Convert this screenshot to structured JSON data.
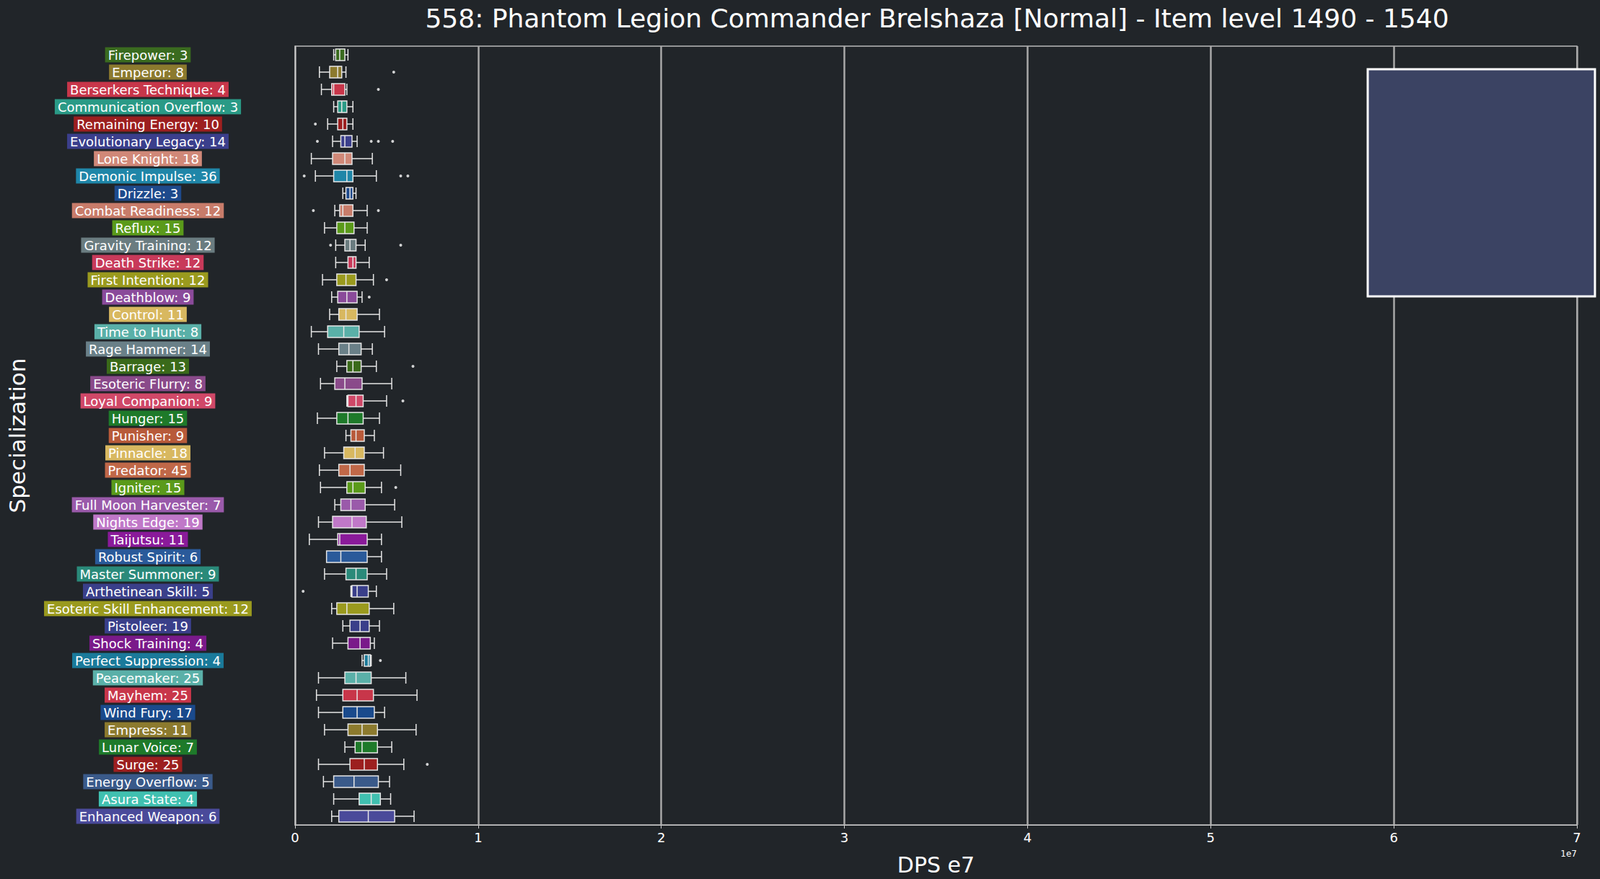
{
  "chart_data": {
    "type": "boxplot",
    "title": "558: Phantom Legion Commander Brelshaza [Normal] - Item level 1490 - 1540",
    "x_label": "DPS e7",
    "y_label": "Specialization",
    "annotations": [
      "1e7"
    ],
    "orientation": "horizontal",
    "grid": true,
    "xlim": [
      0,
      7
    ],
    "xticks": [
      0,
      1,
      2,
      3,
      4,
      5,
      6,
      7
    ],
    "categories": [
      "Firepower: 3",
      "Emperor: 8",
      "Berserkers Technique: 4",
      "Communication Overflow: 3",
      "Remaining Energy: 10",
      "Evolutionary Legacy: 14",
      "Lone Knight: 18",
      "Demonic Impulse: 36",
      "Drizzle: 3",
      "Combat Readiness: 12",
      "Reflux: 15",
      "Gravity Training: 12",
      "Death Strike: 12",
      "First Intention: 12",
      "Deathblow: 9",
      "Control: 11",
      "Time to Hunt: 8",
      "Rage Hammer: 14",
      "Barrage: 13",
      "Esoteric Flurry: 8",
      "Loyal Companion: 9",
      "Hunger: 15",
      "Punisher: 9",
      "Pinnacle: 18",
      "Predator: 45",
      "Igniter: 15",
      "Full Moon Harvester: 7",
      "Nights Edge: 19",
      "Taijutsu: 11",
      "Robust Spirit: 6",
      "Master Summoner: 9",
      "Arthetinean Skill: 5",
      "Esoteric Skill Enhancement: 12",
      "Pistoleer: 19",
      "Shock Training: 4",
      "Perfect Suppression: 4",
      "Peacemaker: 25",
      "Mayhem: 25",
      "Wind Fury: 17",
      "Empress: 11",
      "Lunar Voice: 7",
      "Surge: 25",
      "Energy Overflow: 5",
      "Asura State: 4",
      "Enhanced Weapon: 6"
    ],
    "boxes": [
      [
        0.211,
        0.222,
        0.244,
        0.272,
        0.289
      ],
      [
        0.133,
        0.189,
        0.233,
        0.255,
        0.278
      ],
      [
        0.144,
        0.2,
        0.211,
        0.272,
        0.283
      ],
      [
        0.211,
        0.233,
        0.255,
        0.283,
        0.316
      ],
      [
        0.178,
        0.233,
        0.261,
        0.283,
        0.316
      ],
      [
        0.205,
        0.25,
        0.272,
        0.311,
        0.339
      ],
      [
        0.089,
        0.205,
        0.272,
        0.311,
        0.422
      ],
      [
        0.111,
        0.211,
        0.283,
        0.316,
        0.444
      ],
      [
        0.261,
        0.278,
        0.3,
        0.316,
        0.333
      ],
      [
        0.217,
        0.244,
        0.261,
        0.316,
        0.394
      ],
      [
        0.161,
        0.228,
        0.272,
        0.322,
        0.394
      ],
      [
        0.222,
        0.272,
        0.3,
        0.333,
        0.383
      ],
      [
        0.222,
        0.289,
        0.316,
        0.333,
        0.405
      ],
      [
        0.15,
        0.228,
        0.278,
        0.333,
        0.428
      ],
      [
        0.2,
        0.233,
        0.283,
        0.339,
        0.366
      ],
      [
        0.189,
        0.239,
        0.278,
        0.339,
        0.461
      ],
      [
        0.089,
        0.178,
        0.266,
        0.35,
        0.489
      ],
      [
        0.128,
        0.239,
        0.294,
        0.361,
        0.422
      ],
      [
        0.228,
        0.283,
        0.316,
        0.361,
        0.444
      ],
      [
        0.139,
        0.217,
        0.272,
        0.366,
        0.528
      ],
      [
        0.283,
        0.289,
        0.333,
        0.372,
        0.5
      ],
      [
        0.122,
        0.228,
        0.289,
        0.372,
        0.461
      ],
      [
        0.278,
        0.305,
        0.333,
        0.378,
        0.433
      ],
      [
        0.161,
        0.266,
        0.328,
        0.378,
        0.483
      ],
      [
        0.133,
        0.239,
        0.3,
        0.378,
        0.577
      ],
      [
        0.139,
        0.283,
        0.316,
        0.383,
        0.472
      ],
      [
        0.217,
        0.25,
        0.305,
        0.383,
        0.544
      ],
      [
        0.128,
        0.205,
        0.311,
        0.389,
        0.583
      ],
      [
        0.078,
        0.233,
        0.244,
        0.394,
        0.472
      ],
      [
        0.172,
        0.172,
        0.25,
        0.394,
        0.472
      ],
      [
        0.161,
        0.278,
        0.333,
        0.394,
        0.5
      ],
      [
        0.305,
        0.311,
        0.339,
        0.4,
        0.444
      ],
      [
        0.2,
        0.228,
        0.283,
        0.405,
        0.539
      ],
      [
        0.261,
        0.3,
        0.355,
        0.405,
        0.461
      ],
      [
        0.205,
        0.289,
        0.355,
        0.411,
        0.433
      ],
      [
        0.366,
        0.378,
        0.4,
        0.411,
        0.416
      ],
      [
        0.128,
        0.272,
        0.333,
        0.416,
        0.605
      ],
      [
        0.117,
        0.261,
        0.339,
        0.428,
        0.666
      ],
      [
        0.128,
        0.261,
        0.339,
        0.433,
        0.489
      ],
      [
        0.161,
        0.289,
        0.366,
        0.45,
        0.661
      ],
      [
        0.272,
        0.328,
        0.366,
        0.45,
        0.528
      ],
      [
        0.128,
        0.3,
        0.378,
        0.45,
        0.594
      ],
      [
        0.155,
        0.211,
        0.322,
        0.455,
        0.516
      ],
      [
        0.211,
        0.35,
        0.416,
        0.466,
        0.522
      ],
      [
        0.2,
        0.239,
        0.4,
        0.544,
        0.65
      ]
    ],
    "outliers": [
      [],
      [
        0.539
      ],
      [
        0.455
      ],
      [],
      [
        0.111
      ],
      [
        0.122,
        0.416,
        0.455,
        0.533
      ],
      [],
      [
        0.05,
        0.577,
        0.616
      ],
      [],
      [
        0.1,
        0.455
      ],
      [],
      [
        0.194,
        0.577
      ],
      [],
      [
        0.5
      ],
      [
        0.405
      ],
      [],
      [],
      [],
      [
        0.644
      ],
      [],
      [
        0.589
      ],
      [],
      [],
      [],
      [],
      [
        0.55
      ],
      [],
      [],
      [],
      [],
      [],
      [
        0.044
      ],
      [],
      [],
      [],
      [
        0.466
      ],
      [],
      [],
      [],
      [],
      [],
      [
        0.722
      ],
      [],
      [],
      []
    ],
    "colors": [
      "#3a6b1f",
      "#8c7a2e",
      "#c8364a",
      "#2a9a86",
      "#9c1f1f",
      "#3b3f8c",
      "#d08878",
      "#1f86a8",
      "#1e4a8c",
      "#c87c6a",
      "#5a9a1a",
      "#6a7c80",
      "#c83a5a",
      "#9a9a1e",
      "#8a4a9a",
      "#d8b860",
      "#5ab0a8",
      "#6a8088",
      "#3a6a1a",
      "#8a4a8a",
      "#d04868",
      "#1e7a2a",
      "#b85a3a",
      "#d8b860",
      "#c06848",
      "#5a9a1a",
      "#9a5aaa",
      "#c078c8",
      "#8a1a9a",
      "#2a5a9a",
      "#2a8a7a",
      "#3a3f8a",
      "#9a9a1e",
      "#3a3f8a",
      "#7a1a8a",
      "#1a7a9a",
      "#5ab0a8",
      "#c8364a",
      "#1a4a8c",
      "#8c7a2e",
      "#1e7a2a",
      "#9c1f1f",
      "#3a5a8a",
      "#40c0b0",
      "#4a4a9a"
    ]
  }
}
